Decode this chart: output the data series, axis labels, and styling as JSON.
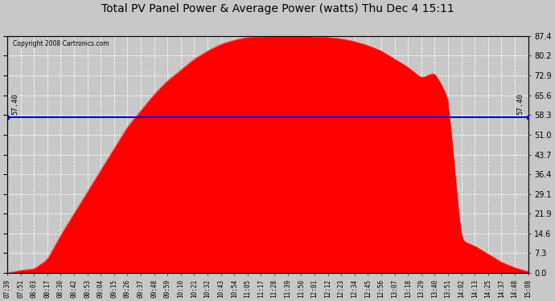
{
  "title": "Total PV Panel Power & Average Power (watts) Thu Dec 4 15:11",
  "copyright": "Copyright 2008 Cartronics.com",
  "avg_value": 57.4,
  "avg_label": "57.40",
  "ymax": 87.4,
  "yticks": [
    0.0,
    7.3,
    14.6,
    21.9,
    29.1,
    36.4,
    43.7,
    51.0,
    58.3,
    65.6,
    72.9,
    80.2,
    87.4
  ],
  "fill_color": "#FF0000",
  "avg_line_color": "#0000FF",
  "bg_color": "#C8C8C8",
  "title_fontsize": 10,
  "x_labels": [
    "07:39",
    "07:51",
    "08:03",
    "08:17",
    "08:30",
    "08:42",
    "08:53",
    "09:04",
    "09:15",
    "09:26",
    "09:37",
    "09:48",
    "09:59",
    "10:10",
    "10:21",
    "10:32",
    "10:43",
    "10:54",
    "11:05",
    "11:17",
    "11:28",
    "11:39",
    "11:50",
    "12:01",
    "12:12",
    "12:23",
    "12:34",
    "12:45",
    "12:56",
    "13:07",
    "13:18",
    "13:29",
    "13:40",
    "13:51",
    "14:02",
    "14:13",
    "14:25",
    "14:37",
    "14:48",
    "15:08"
  ],
  "pv_data": [
    0.0,
    1.0,
    1.5,
    5.0,
    14.0,
    22.0,
    30.0,
    38.0,
    46.0,
    54.0,
    60.0,
    66.0,
    71.0,
    75.0,
    79.0,
    82.0,
    84.5,
    86.0,
    87.0,
    87.2,
    87.3,
    87.4,
    87.4,
    87.2,
    87.0,
    86.5,
    85.5,
    84.0,
    82.0,
    79.0,
    76.0,
    72.0,
    74.0,
    65.0,
    12.0,
    10.0,
    7.0,
    4.0,
    2.0,
    0.5
  ],
  "spike_idx": 33,
  "spike_val": 70.0
}
